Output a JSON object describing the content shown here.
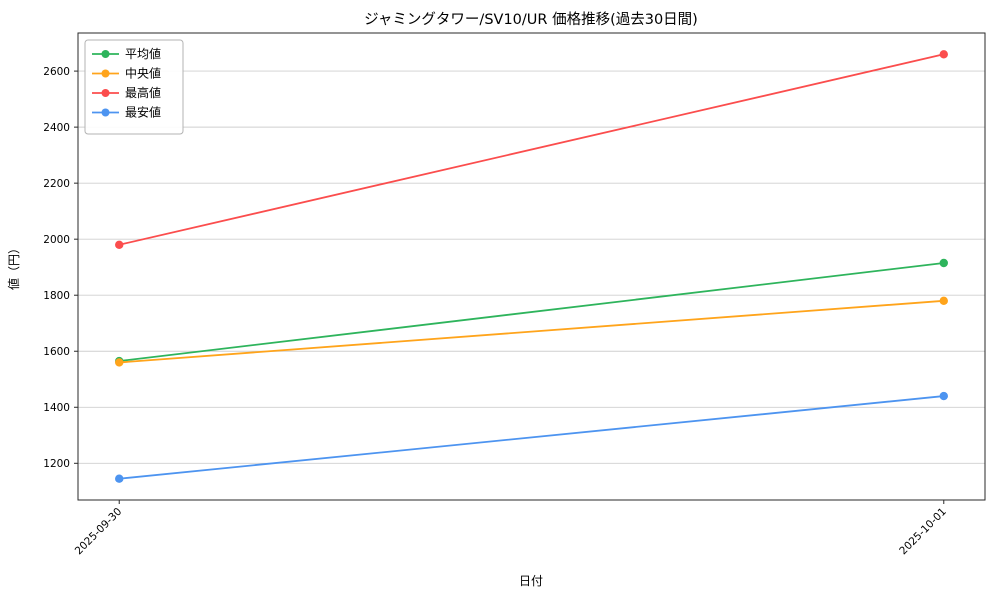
{
  "title": "ジャミングタワー/SV10/UR 価格推移(過去30日間)",
  "xlabel": "日付",
  "ylabel": "値（円）",
  "chart_data": {
    "type": "line",
    "x": [
      "2025-09-30",
      "2025-10-01"
    ],
    "series": [
      {
        "name": "平均値",
        "color": "#2eb45c",
        "values": [
          1565,
          1915
        ]
      },
      {
        "name": "中央値",
        "color": "#ffa41b",
        "values": [
          1560,
          1780
        ]
      },
      {
        "name": "最高値",
        "color": "#fb4d4d",
        "values": [
          1980,
          2660
        ]
      },
      {
        "name": "最安値",
        "color": "#4d94f0",
        "values": [
          1145,
          1440
        ]
      }
    ],
    "yticks": [
      1200,
      1400,
      1600,
      1800,
      2000,
      2200,
      2400,
      2600
    ],
    "ylim": [
      1069,
      2736
    ],
    "grid": true,
    "grid_color": "#cfcfcf",
    "spine_color": "#2a2a2a",
    "legend_position": "upper left",
    "legend_labels": [
      "平均値",
      "中央値",
      "最高値",
      "最安値"
    ]
  }
}
